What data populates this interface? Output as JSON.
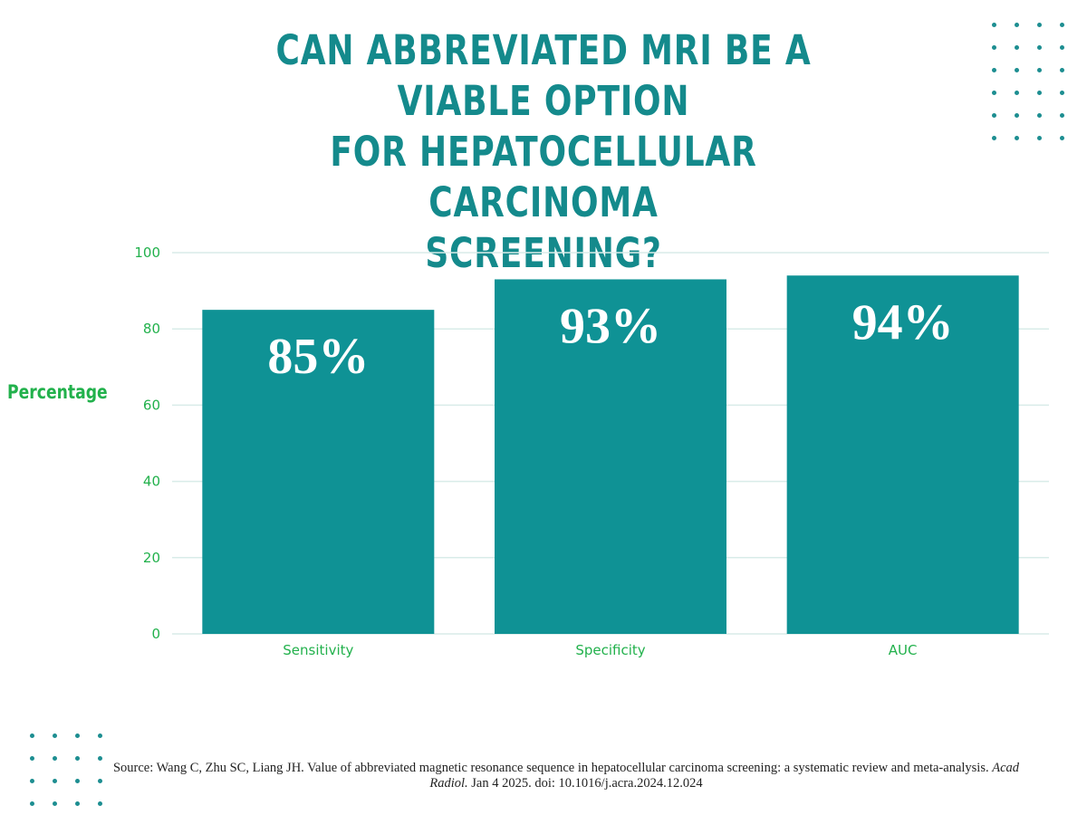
{
  "title": {
    "lines": [
      "CAN ABBREVIATED MRI BE A VIABLE OPTION",
      "FOR HEPATOCELLULAR CARCINOMA",
      "SCREENING?"
    ]
  },
  "colors": {
    "title": "#148a8c",
    "bar": "#0f9295",
    "axis_text": "#22b14c",
    "grid": "#d9ece9",
    "dots": "#1d8e91"
  },
  "chart_data": {
    "type": "bar",
    "categories": [
      "Sensitivity",
      "Specificity",
      "AUC"
    ],
    "values": [
      85,
      93,
      94
    ],
    "data_labels": [
      "85%",
      "93%",
      "94%"
    ],
    "ylabel": "Percentage",
    "xlabel": "",
    "ylim": [
      0,
      100
    ],
    "yticks": [
      0,
      20,
      40,
      60,
      80,
      100
    ],
    "grid": true
  },
  "source": {
    "prefix": "Source: Wang C, Zhu SC, Liang JH. Value of abbreviated magnetic resonance sequence in hepatocellular carcinoma screening: a systematic review and meta-analysis.",
    "journal": "Acad Radiol.",
    "suffix": "Jan 4 2025. doi: 10.1016/j.acra.2024.12.024"
  },
  "decor": {
    "top_right_dots": "dot-grid-icon",
    "bottom_left_dots": "dot-grid-icon"
  }
}
